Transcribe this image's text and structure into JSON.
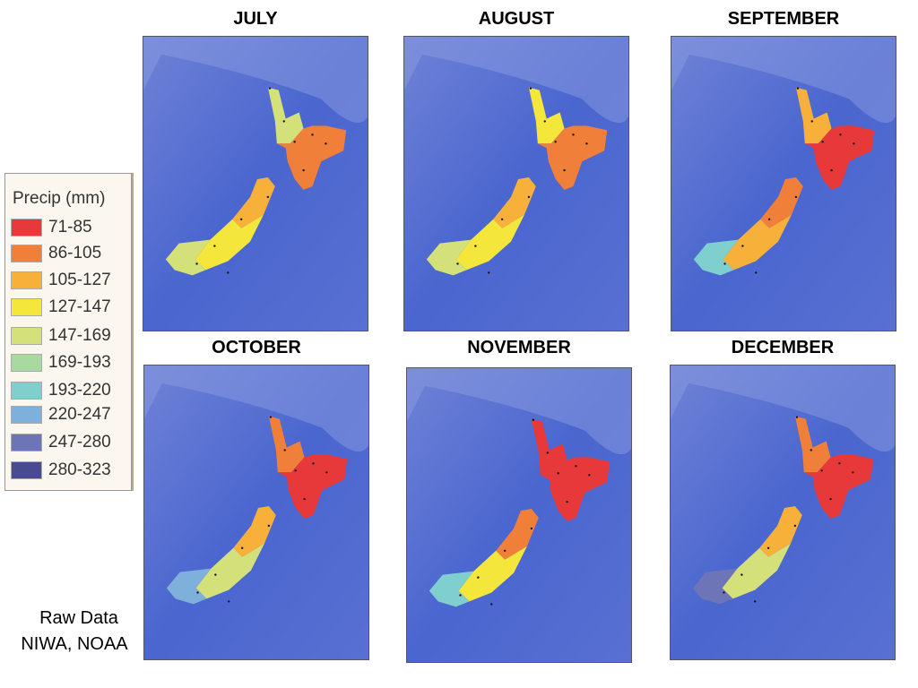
{
  "panels": [
    {
      "title": "JULY"
    },
    {
      "title": "AUGUST"
    },
    {
      "title": "SEPTEMBER"
    },
    {
      "title": "OCTOBER"
    },
    {
      "title": "NOVEMBER"
    },
    {
      "title": "DECEMBER"
    }
  ],
  "legend": {
    "title": "Precip (mm)",
    "items": [
      "71-85",
      "86-105",
      "105-127",
      "127-147",
      "147-169",
      "169-193",
      "193-220",
      "220-247",
      "247-280",
      "280-323"
    ]
  },
  "source": [
    "Raw Data",
    "NIWA, NOAA"
  ]
}
